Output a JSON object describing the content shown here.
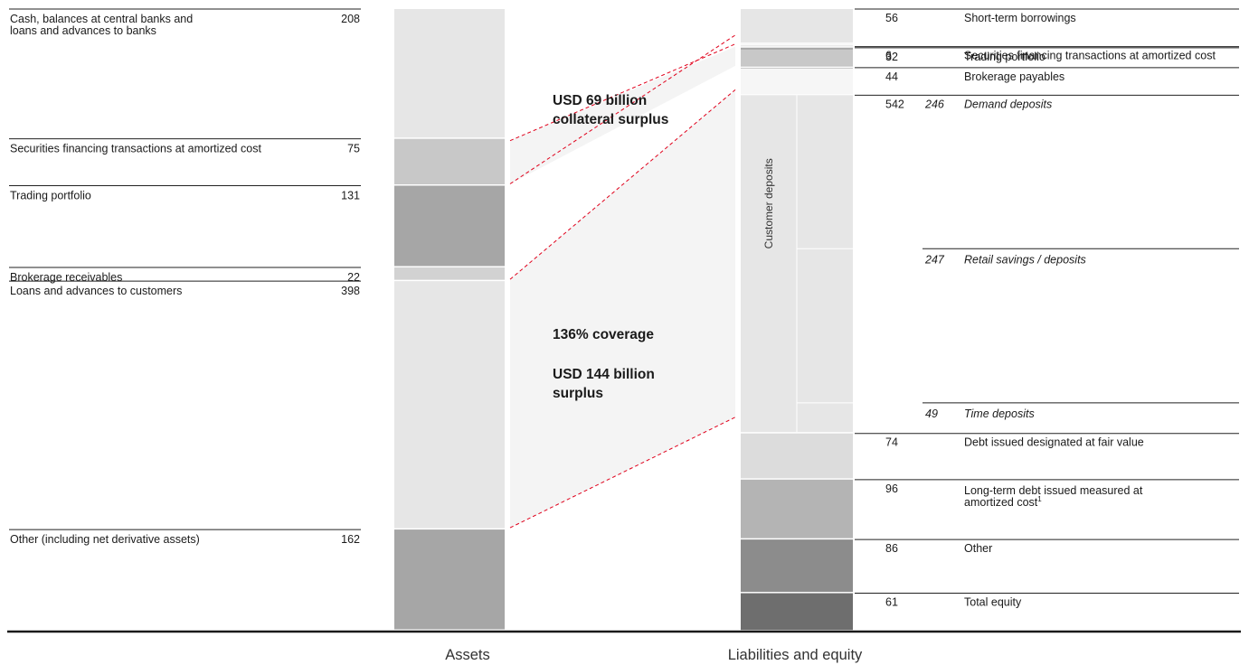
{
  "chart_data": {
    "type": "bar",
    "unit": "",
    "stacks": [
      {
        "name": "Assets",
        "segments": [
          {
            "label": "Cash, balances at central banks and loans and advances to banks",
            "value": 208,
            "color": "#e6e6e6"
          },
          {
            "label": "Securities financing transactions at amortized cost",
            "value": 75,
            "color": "#c8c8c8"
          },
          {
            "label": "Trading portfolio",
            "value": 131,
            "color": "#a6a6a6"
          },
          {
            "label": "Brokerage receivables",
            "value": 22,
            "color": "#d2d2d2"
          },
          {
            "label": "Loans and advances to customers",
            "value": 398,
            "color": "#e6e6e6"
          },
          {
            "label": "Other (including net derivative assets)",
            "value": 162,
            "color": "#a6a6a6"
          }
        ]
      },
      {
        "name": "Liabilities and equity",
        "segments": [
          {
            "label": "Short-term borrowings",
            "value": 56,
            "color": "#e6e6e6"
          },
          {
            "label": "Securities financing transactions at amortized cost",
            "value": 6,
            "color": "#e6e6e6"
          },
          {
            "label": "Trading portfolio",
            "value": 32,
            "color": "#a6a6a6"
          },
          {
            "label": "Brokerage payables",
            "value": 44,
            "color": "#c8c8c8"
          },
          {
            "label": "Customer deposits",
            "value": 542,
            "color": "#e6e6e6",
            "sub": [
              {
                "label": "Demand deposits",
                "value": 246
              },
              {
                "label": "Retail savings / deposits",
                "value": 247
              },
              {
                "label": "Time deposits",
                "value": 49
              }
            ]
          },
          {
            "label": "Debt issued designated at fair value",
            "value": 74,
            "color": "#dcdcdc"
          },
          {
            "label": "Long-term debt issued measured at amortized cost",
            "footnote": "1",
            "value": 96,
            "color": "#b4b4b4"
          },
          {
            "label": "Other",
            "value": 86,
            "color": "#8c8c8c"
          },
          {
            "label": "Total equity",
            "value": 61,
            "color": "#6e6e6e"
          }
        ]
      }
    ],
    "annotations": [
      {
        "lines": [
          "USD 69 billion",
          "collateral surplus"
        ]
      },
      {
        "lines": [
          "136% coverage",
          "",
          "USD 144 billion",
          "surplus"
        ]
      }
    ],
    "vertical_label": "Customer deposits"
  }
}
